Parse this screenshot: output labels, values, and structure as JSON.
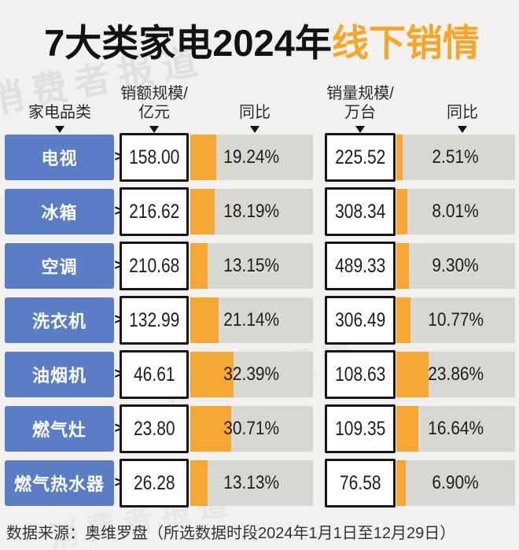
{
  "title": {
    "black": "7大类家电2024年",
    "orange": "线下销情"
  },
  "watermark": "消费者报道",
  "columns": {
    "category": "家电品类",
    "sales_value_line1": "销额规模/",
    "sales_value_line2": "亿元",
    "yoy_value": "同比",
    "sales_volume_line1": "销量规模/",
    "sales_volume_line2": "万台",
    "yoy_volume": "同比"
  },
  "arrow_glyph": ">",
  "rows": [
    {
      "category": "电视",
      "sales_value": "158.00",
      "value_yoy": "19.24%",
      "value_yoy_pct": 19.24,
      "sales_volume": "225.52",
      "volume_yoy": "2.51%",
      "volume_yoy_pct": 2.51
    },
    {
      "category": "冰箱",
      "sales_value": "216.62",
      "value_yoy": "18.19%",
      "value_yoy_pct": 18.19,
      "sales_volume": "308.34",
      "volume_yoy": "8.01%",
      "volume_yoy_pct": 8.01
    },
    {
      "category": "空调",
      "sales_value": "210.68",
      "value_yoy": "13.15%",
      "value_yoy_pct": 13.15,
      "sales_volume": "489.33",
      "volume_yoy": "9.30%",
      "volume_yoy_pct": 9.3
    },
    {
      "category": "洗衣机",
      "sales_value": "132.99",
      "value_yoy": "21.14%",
      "value_yoy_pct": 21.14,
      "sales_volume": "306.49",
      "volume_yoy": "10.77%",
      "volume_yoy_pct": 10.77
    },
    {
      "category": "油烟机",
      "sales_value": "46.61",
      "value_yoy": "32.39%",
      "value_yoy_pct": 32.39,
      "sales_volume": "108.63",
      "volume_yoy": "23.86%",
      "volume_yoy_pct": 23.86
    },
    {
      "category": "燃气灶",
      "sales_value": "23.80",
      "value_yoy": "30.71%",
      "value_yoy_pct": 30.71,
      "sales_volume": "109.35",
      "volume_yoy": "16.64%",
      "volume_yoy_pct": 16.64
    },
    {
      "category": "燃气热水器",
      "sales_value": "26.28",
      "value_yoy": "13.13%",
      "value_yoy_pct": 13.13,
      "sales_volume": "76.58",
      "volume_yoy": "6.90%",
      "volume_yoy_pct": 6.9
    }
  ],
  "footer": "数据来源：奥维罗盘（所选数据时段2024年1月1日至12月29日）",
  "colors": {
    "background": "#f2f1ef",
    "blue": "#5b7dc5",
    "orange": "#f4a732",
    "title_orange": "#f5a72c",
    "track_gray": "#d9d7d4",
    "text": "#1c1c1c"
  },
  "chart_data": {
    "type": "bar",
    "title": "7大类家电2024年线下销情",
    "categories": [
      "电视",
      "冰箱",
      "空调",
      "洗衣机",
      "油烟机",
      "燃气灶",
      "燃气热水器"
    ],
    "series": [
      {
        "name": "销额规模/亿元",
        "values": [
          158.0,
          216.62,
          210.68,
          132.99,
          46.61,
          23.8,
          26.28
        ]
      },
      {
        "name": "销额同比(%)",
        "values": [
          19.24,
          18.19,
          13.15,
          21.14,
          32.39,
          30.71,
          13.13
        ]
      },
      {
        "name": "销量规模/万台",
        "values": [
          225.52,
          308.34,
          489.33,
          306.49,
          108.63,
          109.35,
          76.58
        ]
      },
      {
        "name": "销量同比(%)",
        "values": [
          2.51,
          8.01,
          9.3,
          10.77,
          23.86,
          16.64,
          6.9
        ]
      }
    ],
    "legend_position": "none",
    "grid": false,
    "source": "奥维罗盘（所选数据时段2024年1月1日至12月29日）"
  }
}
